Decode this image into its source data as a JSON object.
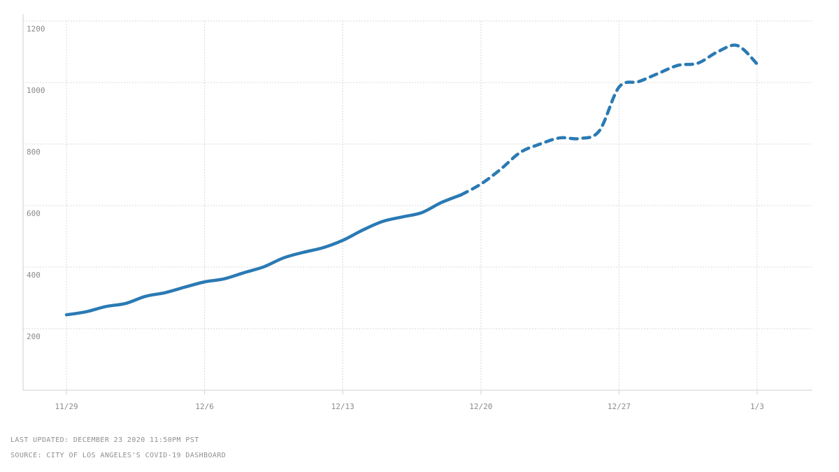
{
  "chart_data": {
    "type": "line",
    "title": "",
    "xlabel": "",
    "ylabel": "",
    "x_tick_labels": [
      "11/29",
      "12/6",
      "12/13",
      "12/20",
      "12/27",
      "1/3"
    ],
    "y_tick_labels": [
      "200",
      "400",
      "600",
      "800",
      "1000",
      "1200"
    ],
    "y_ticks": [
      200,
      400,
      600,
      800,
      1000,
      1200
    ],
    "ylim": [
      0,
      1200
    ],
    "xlim_days": [
      -2.2,
      37.8
    ],
    "grid": true,
    "series": [
      {
        "style": "solid",
        "color": "#2a7ab4",
        "points": [
          [
            0,
            245
          ],
          [
            1,
            255
          ],
          [
            2,
            272
          ],
          [
            3,
            282
          ],
          [
            4,
            305
          ],
          [
            5,
            317
          ],
          [
            6,
            335
          ],
          [
            7,
            352
          ],
          [
            8,
            362
          ],
          [
            9,
            382
          ],
          [
            10,
            401
          ],
          [
            11,
            430
          ],
          [
            12,
            448
          ],
          [
            13,
            463
          ],
          [
            14,
            487
          ],
          [
            15,
            520
          ],
          [
            16,
            548
          ],
          [
            17,
            563
          ],
          [
            18,
            577
          ],
          [
            19,
            610
          ],
          [
            20,
            635
          ]
        ]
      },
      {
        "style": "dashed",
        "color": "#2a7ab4",
        "points": [
          [
            20,
            635
          ],
          [
            21,
            670
          ],
          [
            22,
            718
          ],
          [
            23,
            773
          ],
          [
            24,
            800
          ],
          [
            25,
            820
          ],
          [
            26,
            818
          ],
          [
            27,
            843
          ],
          [
            28,
            985
          ],
          [
            29,
            1003
          ],
          [
            30,
            1030
          ],
          [
            31,
            1056
          ],
          [
            32,
            1063
          ],
          [
            33,
            1100
          ],
          [
            34,
            1120
          ],
          [
            35,
            1060
          ]
        ]
      }
    ]
  },
  "footer": {
    "updated": "LAST UPDATED: DECEMBER 23 2020 11:50PM PST",
    "source": "SOURCE: CITY OF LOS ANGELES'S COVID-19 DASHBOARD"
  }
}
